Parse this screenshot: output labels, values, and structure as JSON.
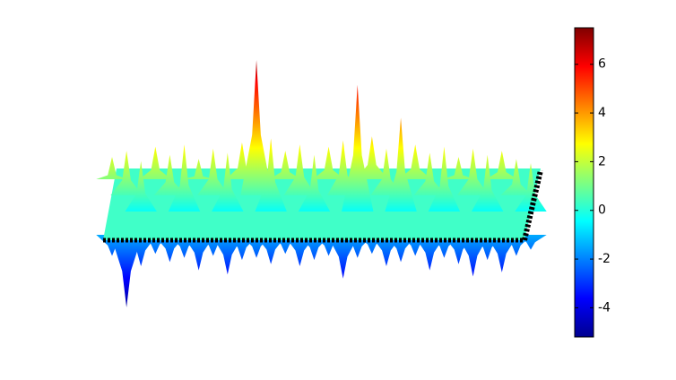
{
  "chart_data": {
    "type": "surface",
    "z": [
      [
        2.3,
        2.6,
        2.1,
        2.8,
        2.4,
        2.9,
        2.2,
        2.7,
        2.5,
        3.0,
        7.0,
        3.2,
        2.6,
        2.9,
        2.4,
        2.8,
        3.1,
        5.8,
        3.3,
        2.7,
        4.2,
        2.9,
        2.5,
        2.8,
        2.3,
        2.7,
        2.4,
        2.6,
        2.2,
        2.0
      ],
      [
        -2.5,
        -5.0,
        -3.0,
        -2.4,
        -2.8,
        -2.6,
        -3.2,
        -2.5,
        -3.4,
        -2.7,
        -2.6,
        -2.9,
        -2.4,
        -3.0,
        -2.7,
        -2.5,
        -3.6,
        -2.6,
        -2.4,
        -3.0,
        -2.8,
        -2.5,
        -3.2,
        -2.6,
        -2.9,
        -3.5,
        -2.7,
        -3.3,
        -2.5,
        -2.2
      ]
    ],
    "zlim": [
      -5.2,
      7.5
    ],
    "zticks": [
      -4,
      -2,
      0,
      2,
      4,
      6
    ],
    "colormap": [
      "#00008f",
      "#0000ff",
      "#00ffff",
      "#ffff00",
      "#ff0000",
      "#800000"
    ]
  }
}
